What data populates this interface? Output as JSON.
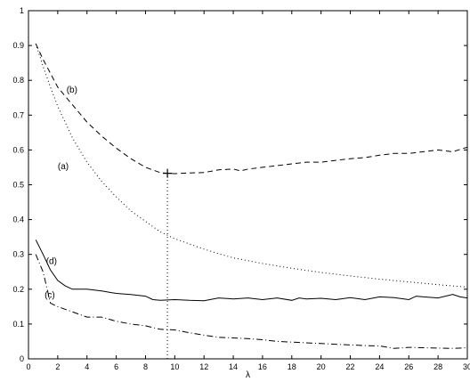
{
  "chart_data": {
    "type": "line",
    "title": "",
    "xlabel": "λ",
    "ylabel": "",
    "xlim": [
      0,
      30
    ],
    "ylim": [
      0,
      1
    ],
    "x_ticks": [
      0,
      2,
      4,
      6,
      8,
      10,
      12,
      14,
      16,
      18,
      20,
      22,
      24,
      26,
      28,
      30
    ],
    "y_ticks": [
      0,
      0.1,
      0.2,
      0.3,
      0.4,
      0.5,
      0.6,
      0.7,
      0.8,
      0.9,
      1
    ],
    "grid": false,
    "legend": "none",
    "series": [
      {
        "name": "(b)",
        "style": "dashed",
        "label_at": [
          2.6,
          0.765
        ],
        "points": [
          [
            0.5,
            0.905
          ],
          [
            1,
            0.86
          ],
          [
            1.5,
            0.82
          ],
          [
            2,
            0.78
          ],
          [
            2.5,
            0.755
          ],
          [
            3,
            0.73
          ],
          [
            3.5,
            0.705
          ],
          [
            4,
            0.68
          ],
          [
            5,
            0.64
          ],
          [
            6,
            0.605
          ],
          [
            7,
            0.575
          ],
          [
            8,
            0.55
          ],
          [
            9,
            0.535
          ],
          [
            9.5,
            0.533
          ],
          [
            10,
            0.532
          ],
          [
            11,
            0.534
          ],
          [
            12,
            0.535
          ],
          [
            13,
            0.543
          ],
          [
            14,
            0.545
          ],
          [
            14.5,
            0.54
          ],
          [
            15,
            0.545
          ],
          [
            16,
            0.55
          ],
          [
            17,
            0.555
          ],
          [
            18,
            0.56
          ],
          [
            19,
            0.565
          ],
          [
            20,
            0.565
          ],
          [
            21,
            0.57
          ],
          [
            22,
            0.575
          ],
          [
            23,
            0.578
          ],
          [
            24,
            0.585
          ],
          [
            25,
            0.59
          ],
          [
            26,
            0.59
          ],
          [
            27,
            0.595
          ],
          [
            28,
            0.6
          ],
          [
            29,
            0.595
          ],
          [
            30,
            0.608
          ]
        ]
      },
      {
        "name": "(a)",
        "style": "dotted",
        "label_at": [
          2.0,
          0.545
        ],
        "points": [
          [
            0.5,
            0.905
          ],
          [
            1,
            0.84
          ],
          [
            1.5,
            0.78
          ],
          [
            2,
            0.725
          ],
          [
            2.5,
            0.68
          ],
          [
            3,
            0.635
          ],
          [
            4,
            0.565
          ],
          [
            5,
            0.51
          ],
          [
            6,
            0.465
          ],
          [
            7,
            0.425
          ],
          [
            8,
            0.395
          ],
          [
            9,
            0.365
          ],
          [
            10,
            0.345
          ],
          [
            11,
            0.33
          ],
          [
            12,
            0.315
          ],
          [
            13,
            0.302
          ],
          [
            14,
            0.29
          ],
          [
            16,
            0.274
          ],
          [
            18,
            0.26
          ],
          [
            20,
            0.248
          ],
          [
            22,
            0.238
          ],
          [
            24,
            0.229
          ],
          [
            26,
            0.221
          ],
          [
            28,
            0.213
          ],
          [
            30,
            0.206
          ]
        ]
      },
      {
        "name": "(d)",
        "style": "solid",
        "label_at": [
          1.2,
          0.272
        ],
        "points": [
          [
            0.5,
            0.342
          ],
          [
            1,
            0.3
          ],
          [
            1.5,
            0.255
          ],
          [
            2,
            0.225
          ],
          [
            2.5,
            0.21
          ],
          [
            3,
            0.2
          ],
          [
            4,
            0.2
          ],
          [
            5,
            0.195
          ],
          [
            6,
            0.188
          ],
          [
            7,
            0.185
          ],
          [
            8,
            0.18
          ],
          [
            8.5,
            0.17
          ],
          [
            9,
            0.168
          ],
          [
            10,
            0.17
          ],
          [
            11,
            0.168
          ],
          [
            12,
            0.167
          ],
          [
            13,
            0.175
          ],
          [
            14,
            0.172
          ],
          [
            15,
            0.175
          ],
          [
            16,
            0.17
          ],
          [
            17,
            0.175
          ],
          [
            18,
            0.168
          ],
          [
            18.5,
            0.175
          ],
          [
            19,
            0.172
          ],
          [
            20,
            0.174
          ],
          [
            21,
            0.17
          ],
          [
            22,
            0.176
          ],
          [
            23,
            0.17
          ],
          [
            24,
            0.178
          ],
          [
            25,
            0.176
          ],
          [
            26,
            0.17
          ],
          [
            26.5,
            0.18
          ],
          [
            27,
            0.178
          ],
          [
            28,
            0.175
          ],
          [
            29,
            0.185
          ],
          [
            29.5,
            0.178
          ],
          [
            30,
            0.175
          ]
        ]
      },
      {
        "name": "(c)",
        "style": "dashdot",
        "label_at": [
          1.1,
          0.175
        ],
        "points": [
          [
            0.5,
            0.3
          ],
          [
            1,
            0.25
          ],
          [
            1.5,
            0.16
          ],
          [
            2,
            0.15
          ],
          [
            3,
            0.135
          ],
          [
            4,
            0.12
          ],
          [
            5,
            0.12
          ],
          [
            6,
            0.108
          ],
          [
            7,
            0.1
          ],
          [
            8,
            0.095
          ],
          [
            9,
            0.085
          ],
          [
            10,
            0.083
          ],
          [
            11,
            0.075
          ],
          [
            12,
            0.068
          ],
          [
            13,
            0.062
          ],
          [
            14,
            0.06
          ],
          [
            15,
            0.058
          ],
          [
            16,
            0.055
          ],
          [
            17,
            0.05
          ],
          [
            18,
            0.048
          ],
          [
            19,
            0.046
          ],
          [
            20,
            0.044
          ],
          [
            21,
            0.042
          ],
          [
            22,
            0.04
          ],
          [
            23,
            0.038
          ],
          [
            24,
            0.037
          ],
          [
            25,
            0.03
          ],
          [
            26,
            0.033
          ],
          [
            27,
            0.032
          ],
          [
            28,
            0.031
          ],
          [
            29,
            0.03
          ],
          [
            30,
            0.032
          ]
        ]
      }
    ],
    "annotations": [
      {
        "type": "marker",
        "shape": "plus",
        "x": 9.5,
        "y": 0.533
      },
      {
        "type": "vline",
        "style": "dotted",
        "x": 9.5,
        "y_from": 0,
        "y_to": 0.533
      }
    ]
  }
}
